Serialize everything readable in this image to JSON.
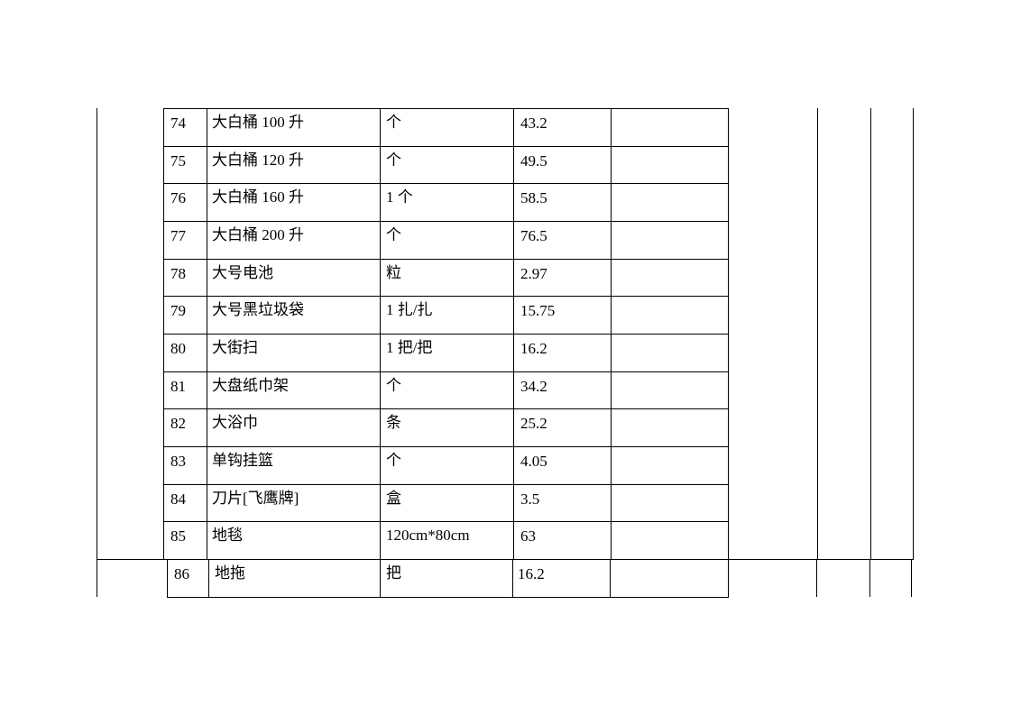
{
  "rows": [
    {
      "no": "74",
      "name": "大白桶 100 升",
      "unit": "个",
      "price": "43.2",
      "note": ""
    },
    {
      "no": "75",
      "name": "大白桶 120 升",
      "unit": "个",
      "price": "49.5",
      "note": ""
    },
    {
      "no": "76",
      "name": "大白桶 160 升",
      "unit": "1 个",
      "price": "58.5",
      "note": ""
    },
    {
      "no": "77",
      "name": "大白桶 200 升",
      "unit": "个",
      "price": "76.5",
      "note": ""
    },
    {
      "no": "78",
      "name": "大号电池",
      "unit": "粒",
      "price": "2.97",
      "note": ""
    },
    {
      "no": "79",
      "name": "大号黑垃圾袋",
      "unit": "1 扎/扎",
      "price": "15.75",
      "note": ""
    },
    {
      "no": "80",
      "name": "大街扫",
      "unit": "1 把/把",
      "price": "16.2",
      "note": ""
    },
    {
      "no": "81",
      "name": "大盘纸巾架",
      "unit": "个",
      "price": "34.2",
      "note": ""
    },
    {
      "no": "82",
      "name": "大浴巾",
      "unit": "条",
      "price": "25.2",
      "note": ""
    },
    {
      "no": "83",
      "name": "单钩挂篮",
      "unit": "个",
      "price": "4.05",
      "note": ""
    },
    {
      "no": "84",
      "name": "刀片[飞鹰牌]",
      "unit": "盒",
      "price": "3.5",
      "note": ""
    },
    {
      "no": "85",
      "name": "地毯",
      "unit": "120cm*80cm",
      "price": "63",
      "note": ""
    }
  ],
  "last_row": {
    "no": "86",
    "name": "地拖",
    "unit": "把",
    "price": "16.2",
    "note": ""
  }
}
